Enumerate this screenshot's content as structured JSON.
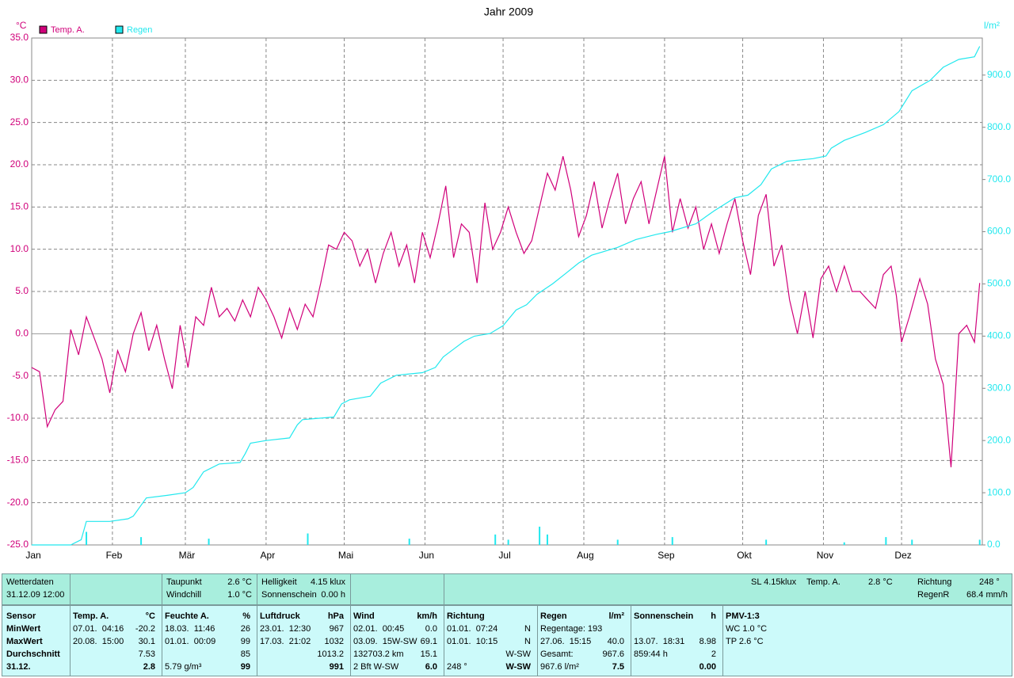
{
  "chart_data": {
    "type": "line",
    "title": "Jahr 2009",
    "y_unit": "°C",
    "y2_unit": "l/m²",
    "grid": true,
    "xlim": [
      0,
      365
    ],
    "xticks": [
      {
        "value": 0,
        "label": "Jan"
      },
      {
        "value": 31,
        "label": "Feb"
      },
      {
        "value": 59,
        "label": "Mär"
      },
      {
        "value": 90,
        "label": "Apr"
      },
      {
        "value": 120,
        "label": "Mai"
      },
      {
        "value": 151,
        "label": "Jun"
      },
      {
        "value": 181,
        "label": "Jul"
      },
      {
        "value": 212,
        "label": "Aug"
      },
      {
        "value": 243,
        "label": "Sep"
      },
      {
        "value": 273,
        "label": "Okt"
      },
      {
        "value": 304,
        "label": "Nov"
      },
      {
        "value": 334,
        "label": "Dez"
      }
    ],
    "ylim": [
      -25,
      35
    ],
    "yticks": [
      {
        "value": -25,
        "label": "-25.0"
      },
      {
        "value": -20,
        "label": "-20.0"
      },
      {
        "value": -15,
        "label": "-15.0"
      },
      {
        "value": -10,
        "label": "-10.0"
      },
      {
        "value": -5,
        "label": "-5.0"
      },
      {
        "value": 0,
        "label": "0.0"
      },
      {
        "value": 5,
        "label": "5.0"
      },
      {
        "value": 10,
        "label": "10.0"
      },
      {
        "value": 15,
        "label": "15.0"
      },
      {
        "value": 20,
        "label": "20.0"
      },
      {
        "value": 25,
        "label": "25.0"
      },
      {
        "value": 30,
        "label": "30.0"
      },
      {
        "value": 35,
        "label": "35.0"
      }
    ],
    "y2lim": [
      0,
      971
    ],
    "y2ticks": [
      {
        "value": 0,
        "label": "0.0"
      },
      {
        "value": 100,
        "label": "100.0"
      },
      {
        "value": 200,
        "label": "200.0"
      },
      {
        "value": 300,
        "label": "300.0"
      },
      {
        "value": 400,
        "label": "400.0"
      },
      {
        "value": 500,
        "label": "500.0"
      },
      {
        "value": 600,
        "label": "600.0"
      },
      {
        "value": 700,
        "label": "700.0"
      },
      {
        "value": 800,
        "label": "800.0"
      },
      {
        "value": 900,
        "label": "900.0"
      }
    ],
    "series": [
      {
        "name": "Temp. A.",
        "color": "#d0007a",
        "x": [
          0,
          3,
          6,
          9,
          12,
          15,
          18,
          21,
          24,
          27,
          30,
          33,
          36,
          39,
          42,
          45,
          48,
          51,
          54,
          57,
          60,
          63,
          66,
          69,
          72,
          75,
          78,
          81,
          84,
          87,
          90,
          93,
          96,
          99,
          102,
          105,
          108,
          111,
          114,
          117,
          120,
          123,
          126,
          129,
          132,
          135,
          138,
          141,
          144,
          147,
          150,
          153,
          156,
          159,
          162,
          165,
          168,
          171,
          174,
          177,
          180,
          183,
          186,
          189,
          192,
          195,
          198,
          201,
          204,
          207,
          210,
          213,
          216,
          219,
          222,
          225,
          228,
          231,
          234,
          237,
          240,
          243,
          246,
          249,
          252,
          255,
          258,
          261,
          264,
          267,
          270,
          273,
          276,
          279,
          282,
          285,
          288,
          291,
          294,
          297,
          300,
          303,
          306,
          309,
          312,
          315,
          318,
          321,
          324,
          327,
          330,
          332,
          334,
          337,
          341,
          344,
          347,
          350,
          353,
          356,
          359,
          362,
          364
        ],
        "values": [
          -4,
          -4.5,
          -11,
          -9,
          -8,
          0.5,
          -2.5,
          2,
          -0.5,
          -3,
          -7,
          -2,
          -4.5,
          0,
          2.5,
          -2,
          1,
          -3,
          -6.5,
          1,
          -4,
          2,
          1,
          5.5,
          2,
          3,
          1.5,
          4,
          2,
          5.5,
          4,
          2,
          -0.5,
          3,
          0.5,
          3.5,
          2,
          6,
          10.5,
          10,
          12,
          11,
          8,
          10,
          6,
          9.5,
          12,
          8,
          10.5,
          6,
          12,
          9,
          13,
          17.5,
          9,
          13,
          12,
          6,
          15.5,
          10,
          12,
          15,
          12,
          9.5,
          11,
          15,
          19,
          17,
          21,
          17,
          11.5,
          14,
          18,
          12.5,
          16,
          19,
          13,
          16,
          18,
          13,
          17,
          21,
          12,
          16,
          12.5,
          15,
          10,
          13,
          9.5,
          13,
          16,
          11,
          7,
          14,
          16.5,
          8,
          10.5,
          4,
          0,
          5,
          -0.5,
          6.5,
          8,
          5,
          8,
          5,
          5,
          4,
          3,
          7,
          8,
          4.5,
          -1,
          2,
          6.5,
          3.5,
          -3,
          -6,
          -15.8,
          0,
          1,
          -1,
          6
        ]
      },
      {
        "name": "Regen",
        "color": "#22e8ee",
        "axis": "y2",
        "x": [
          0,
          15,
          17,
          19,
          21,
          30,
          37,
          39,
          44,
          52,
          59,
          62,
          66,
          72,
          80,
          82,
          84,
          90,
          99,
          102,
          104,
          116,
          119,
          122,
          130,
          134,
          140,
          150,
          155,
          158,
          162,
          166,
          170,
          176,
          181,
          186,
          190,
          194,
          200,
          205,
          210,
          215,
          225,
          232,
          240,
          245,
          255,
          262,
          270,
          275,
          280,
          284,
          290,
          300,
          305,
          307,
          312,
          320,
          327,
          333,
          338,
          345,
          350,
          356,
          362,
          364
        ],
        "values": [
          0,
          0,
          5,
          10,
          45,
          45,
          50,
          55,
          90,
          95,
          100,
          110,
          140,
          155,
          158,
          175,
          195,
          200,
          205,
          230,
          240,
          245,
          270,
          278,
          285,
          310,
          325,
          330,
          340,
          360,
          375,
          390,
          400,
          405,
          420,
          450,
          460,
          480,
          500,
          520,
          540,
          555,
          570,
          585,
          595,
          600,
          615,
          640,
          665,
          670,
          690,
          720,
          735,
          740,
          745,
          760,
          775,
          790,
          805,
          830,
          870,
          890,
          915,
          930,
          935,
          955
        ]
      }
    ],
    "rain_bars": {
      "color": "#22e8ee",
      "axis": "y2",
      "x": [
        21,
        42,
        68,
        106,
        145,
        178,
        183,
        195,
        198,
        225,
        246,
        282,
        312,
        328,
        338,
        364
      ],
      "values": [
        25,
        15,
        12,
        22,
        12,
        20,
        10,
        35,
        20,
        10,
        15,
        10,
        5,
        15,
        10,
        10
      ]
    }
  },
  "status": {
    "label": "Wetterdaten",
    "time": "31.12.09 12:00"
  },
  "top_pairs": [
    [
      [
        "Taupunkt",
        "2.6 °C"
      ],
      [
        "Windchill",
        "1.0 °C"
      ]
    ],
    [
      [
        "Helligkeit",
        "4.15 klux"
      ],
      [
        "Sonnenschein",
        "0.00 h"
      ]
    ]
  ],
  "current": {
    "sl": "SL 4.15klux",
    "temp_label": "Temp. A.",
    "temp": "2.8 °C",
    "dir_label": "Richtung",
    "dir": "248 °",
    "rain_label": "RegenR",
    "rain": "68.4 mm/h"
  },
  "table": {
    "columns": [
      {
        "header": [
          "Sensor",
          null
        ],
        "rows": [
          [
            "MinWert",
            null
          ],
          [
            "MaxWert",
            null
          ],
          [
            "Durchschnitt",
            null
          ],
          [
            "31.12.",
            null
          ]
        ]
      },
      {
        "header": [
          "Temp. A.",
          "°C"
        ],
        "rows": [
          [
            "07.01.  04:16",
            "-20.2"
          ],
          [
            "20.08.  15:00",
            "30.1"
          ],
          [
            null,
            "7.53"
          ],
          [
            null,
            "2.8"
          ]
        ]
      },
      {
        "header": [
          "Feuchte A.",
          "%"
        ],
        "rows": [
          [
            "18.03.  11:46",
            "26"
          ],
          [
            "01.01.  00:09",
            "99"
          ],
          [
            null,
            "85"
          ],
          [
            "5.79 g/m³",
            "99"
          ]
        ]
      },
      {
        "header": [
          "Luftdruck",
          "hPa"
        ],
        "rows": [
          [
            "23.01.  12:30",
            "967"
          ],
          [
            "17.03.  21:02",
            "1032"
          ],
          [
            null,
            "1013.2"
          ],
          [
            null,
            "991"
          ]
        ]
      },
      {
        "header": [
          "Wind",
          "km/h"
        ],
        "rows": [
          [
            "02.01.  00:45",
            "0.0"
          ],
          [
            "03.09.  15W-SW",
            "69.1"
          ],
          [
            "132703.2 km",
            "15.1"
          ],
          [
            "2 Bft W-SW",
            "6.0"
          ]
        ]
      },
      {
        "header": [
          "Richtung",
          null
        ],
        "rows": [
          [
            "01.01.  07:24",
            "N"
          ],
          [
            "01.01.  10:15",
            "N"
          ],
          [
            null,
            "W-SW"
          ],
          [
            "248 °",
            "W-SW"
          ]
        ]
      },
      {
        "header": [
          "Regen",
          "l/m²"
        ],
        "rows": [
          [
            "Regentage: 193",
            null
          ],
          [
            "27.06.  15:15",
            "40.0"
          ],
          [
            "Gesamt:",
            "967.6"
          ],
          [
            "967.6 l/m²",
            "7.5"
          ]
        ]
      },
      {
        "header": [
          "Sonnenschein",
          "h"
        ],
        "rows": [
          [
            null,
            null
          ],
          [
            "13.07.  18:31",
            "8.98"
          ],
          [
            "859:44 h",
            "2"
          ],
          [
            null,
            "0.00"
          ]
        ]
      },
      {
        "header": [
          "PMV-1:3",
          null
        ],
        "rows": [
          [
            "WC 1.0 °C",
            null
          ],
          [
            "TP 2.6 °C",
            null
          ],
          [
            null,
            null
          ],
          [
            null,
            null
          ]
        ]
      }
    ]
  }
}
